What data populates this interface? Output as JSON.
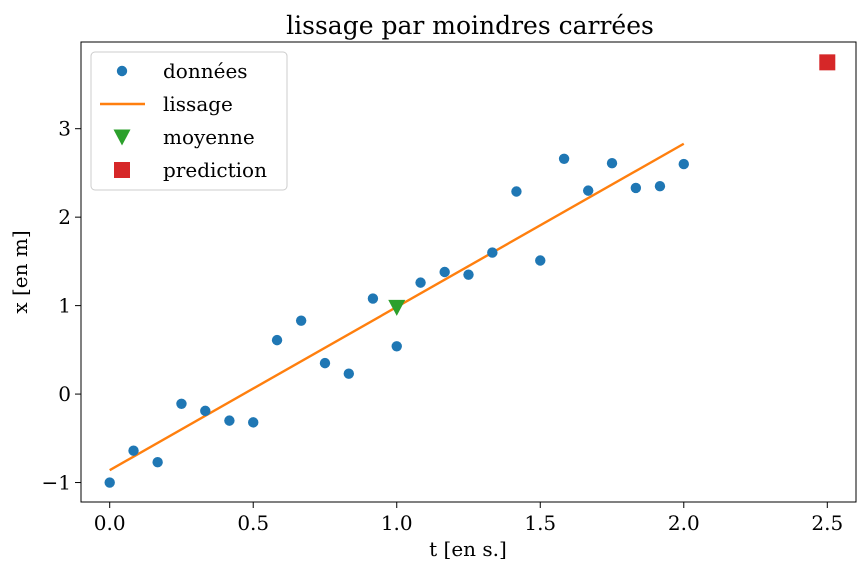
{
  "chart_data": {
    "type": "scatter",
    "title": "lissage par moindres carrées",
    "xlabel": "t [en s.]",
    "ylabel": "x [en m]",
    "xlim": [
      -0.1,
      2.6
    ],
    "ylim": [
      -1.22,
      3.98
    ],
    "xticks": [
      0.0,
      0.5,
      1.0,
      1.5,
      2.0,
      2.5
    ],
    "xtick_labels": [
      "0.0",
      "0.5",
      "1.0",
      "1.5",
      "2.0",
      "2.5"
    ],
    "yticks": [
      -1,
      0,
      1,
      2,
      3
    ],
    "ytick_labels": [
      "−1",
      "0",
      "1",
      "2",
      "3"
    ],
    "legend_position": "upper-left",
    "series": [
      {
        "name": "données",
        "kind": "points",
        "marker": "circle",
        "color": "#1f77b4",
        "x": [
          0.0,
          0.083,
          0.167,
          0.25,
          0.333,
          0.417,
          0.5,
          0.583,
          0.667,
          0.75,
          0.833,
          0.917,
          1.0,
          1.083,
          1.167,
          1.25,
          1.333,
          1.417,
          1.5,
          1.583,
          1.667,
          1.75,
          1.833,
          1.917,
          2.0
        ],
        "y": [
          -1.0,
          -0.64,
          -0.77,
          -0.11,
          -0.19,
          -0.3,
          -0.32,
          0.61,
          0.83,
          0.35,
          0.23,
          1.08,
          0.54,
          1.26,
          1.38,
          1.35,
          1.6,
          2.29,
          1.51,
          2.66,
          2.3,
          2.61,
          2.33,
          2.35,
          2.6
        ]
      },
      {
        "name": "lissage",
        "kind": "line",
        "color": "#ff7f0e",
        "x": [
          0.0,
          2.0
        ],
        "y": [
          -0.86,
          2.83
        ]
      },
      {
        "name": "moyenne",
        "kind": "points",
        "marker": "triangle-down",
        "color": "#2ca02c",
        "x": [
          1.0
        ],
        "y": [
          0.98
        ]
      },
      {
        "name": "prediction",
        "kind": "points",
        "marker": "square",
        "color": "#d62728",
        "x": [
          2.5
        ],
        "y": [
          3.75
        ]
      }
    ]
  }
}
